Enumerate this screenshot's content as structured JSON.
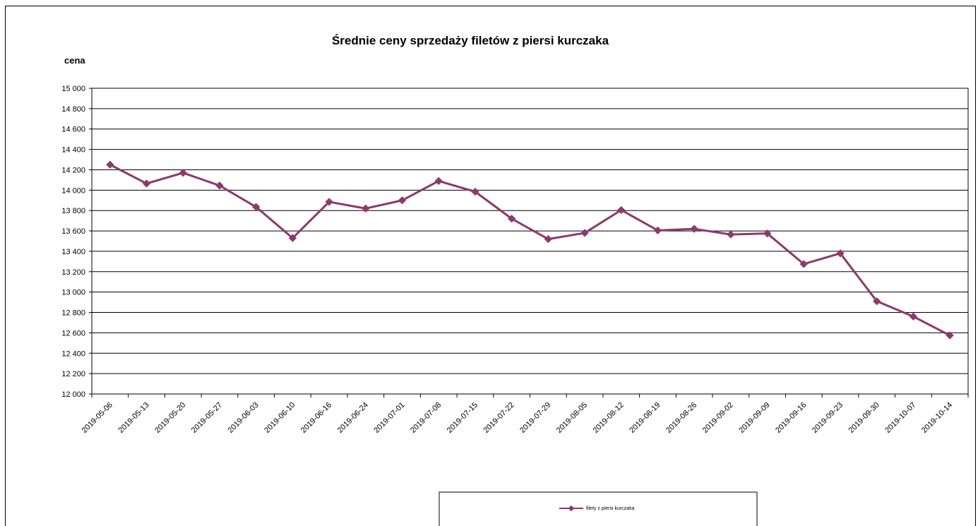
{
  "chart_data": {
    "type": "line",
    "title": "Średnie ceny sprzedaży filetów z piersi kurczaka",
    "ylabel": "cena",
    "xlabel": "",
    "ylim": [
      12000,
      15000
    ],
    "ytick_step": 200,
    "ytick_labels": [
      "12 000",
      "12 200",
      "12 400",
      "12 600",
      "12 800",
      "13 000",
      "13 200",
      "13 400",
      "13 600",
      "13 800",
      "14 000",
      "14 200",
      "14 400",
      "14 600",
      "14 800",
      "15 000"
    ],
    "categories": [
      "2019-05-06",
      "2019-05-13",
      "2019-05-20",
      "2019-05-27",
      "2019-06-03",
      "2019-06-10",
      "2019-06-16",
      "2019-06-24",
      "2019-07-01",
      "2019-07-08",
      "2019-07-15",
      "2019-07-22",
      "2019-07-29",
      "2019-08-05",
      "2019-08-12",
      "2019-08-19",
      "2019-08-26",
      "2019-09-02",
      "2019-09-09",
      "2019-09-16",
      "2019-09-23",
      "2019-09-30",
      "2019-10-07",
      "2019-10-14"
    ],
    "series": [
      {
        "name": "filety z piersi kurczaka",
        "color": "#8b3a6b",
        "values": [
          14250,
          14065,
          14170,
          14045,
          13835,
          13530,
          13885,
          13820,
          13900,
          14090,
          13985,
          13720,
          13520,
          13580,
          13805,
          13605,
          13620,
          13565,
          13575,
          13275,
          13380,
          12910,
          12760,
          12575
        ]
      }
    ],
    "grid": true,
    "legend": "bottom-center"
  }
}
